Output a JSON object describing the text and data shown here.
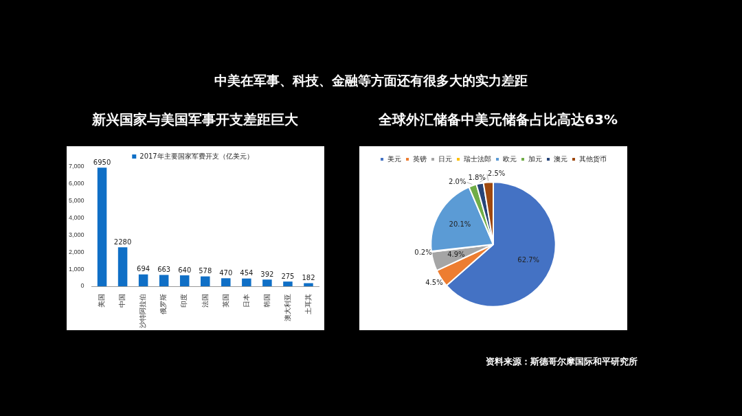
{
  "chart_data": [
    {
      "type": "bar",
      "title": "新兴国家与美国军事开支差距巨大",
      "annotations": [
        "中美在军事、科技、金融等方面还有很多大的实力差距"
      ],
      "categories": [
        "美国",
        "中国",
        "沙特阿拉伯",
        "俄罗斯",
        "印度",
        "法国",
        "英国",
        "日本",
        "韩国",
        "澳大利亚",
        "土耳其"
      ],
      "series": [
        {
          "name": "2017年主要国家军费开支（亿美元）",
          "color": "#0f6fc6",
          "values": [
            6950,
            2280,
            694,
            663,
            640,
            578,
            470,
            454,
            392,
            275,
            182
          ]
        }
      ],
      "ylim": [
        0,
        7000
      ],
      "yticks": [
        0,
        {
          "value": 1000,
          "label": "1,000"
        },
        {
          "value": 2000,
          "label": "2,000"
        },
        {
          "value": 3000,
          "label": "3,000"
        },
        {
          "value": 4000,
          "label": "4,000"
        },
        {
          "value": 5000,
          "label": "5,000"
        },
        {
          "value": 6000,
          "label": "6,000"
        },
        {
          "value": 7000,
          "label": "7,000"
        }
      ],
      "data_labels": true,
      "grid": false,
      "legend": "top"
    },
    {
      "type": "pie",
      "title": "全球外汇储备中美元储备占比高达63%",
      "annotations": [
        "资料来源：斯德哥尔摩国际和平研究所"
      ],
      "categories": [
        "美元",
        "英镑",
        "日元",
        "瑞士法郎",
        "欧元",
        "加元",
        "澳元",
        "其他货币"
      ],
      "values": [
        62.7,
        4.5,
        4.9,
        0.2,
        20.1,
        2.0,
        1.8,
        2.5
      ],
      "colors": [
        "#4472c4",
        "#ed7d31",
        "#a5a5a5",
        "#ffc000",
        "#5b9bd5",
        "#70ad47",
        "#264478",
        "#9e480e"
      ],
      "value_labels": [
        "62.7%",
        "4.5%",
        "4.9%",
        "0.2%",
        "20.1%",
        "2.0%",
        "1.8%",
        "2.5%"
      ],
      "legend": "top"
    }
  ]
}
